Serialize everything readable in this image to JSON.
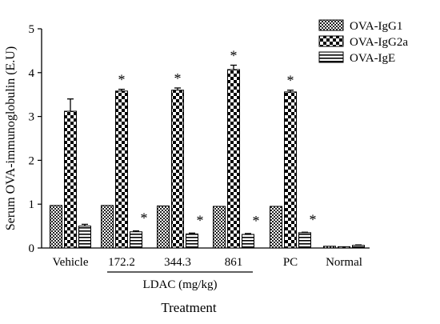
{
  "chart_data": {
    "type": "bar",
    "title": "",
    "xlabel": "Treatment",
    "ylabel": "Serum OVA-immunoglobulin (E.U)",
    "ylim": [
      0,
      5
    ],
    "yticks": [
      "0",
      "1",
      "2",
      "3",
      "4",
      "5"
    ],
    "categories": [
      "Vehicle",
      "172.2",
      "344.3",
      "861",
      "PC",
      "Normal"
    ],
    "group_label": "LDAC (mg/kg)",
    "legend_position": "top-right",
    "significance_marker": "*",
    "series": [
      {
        "name": "OVA-IgG1",
        "pattern": "fine-checker",
        "values": [
          0.97,
          0.97,
          0.96,
          0.95,
          0.95,
          0.04
        ],
        "errors": [
          0,
          0,
          0,
          0,
          0,
          0
        ],
        "significant": [
          false,
          false,
          false,
          false,
          false,
          false
        ]
      },
      {
        "name": "OVA-IgG2a",
        "pattern": "coarse-checker",
        "values": [
          3.12,
          3.58,
          3.6,
          4.07,
          3.56,
          0.03
        ],
        "errors": [
          0.28,
          0.04,
          0.05,
          0.1,
          0.04,
          0
        ],
        "significant": [
          false,
          true,
          true,
          true,
          true,
          false
        ]
      },
      {
        "name": "OVA-IgE",
        "pattern": "horizontal-lines",
        "values": [
          0.5,
          0.37,
          0.32,
          0.31,
          0.35,
          0.06
        ],
        "errors": [
          0.04,
          0.02,
          0.02,
          0.02,
          0.01,
          0.01
        ],
        "significant": [
          false,
          true,
          true,
          true,
          true,
          false
        ]
      }
    ]
  }
}
